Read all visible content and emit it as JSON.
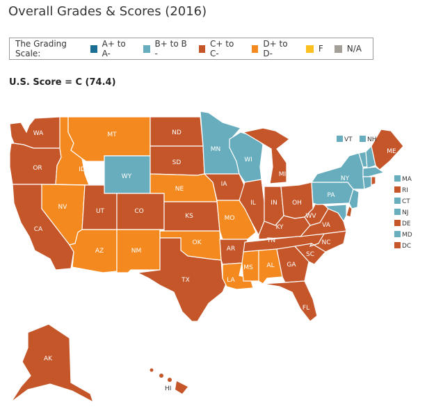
{
  "title": "Overall Grades & Scores (2016)",
  "legend": {
    "label": "The Grading Scale:",
    "items": [
      {
        "label": "A+ to A-",
        "color": "#1a6e94"
      },
      {
        "label": "B+ to B -",
        "color": "#68adbd"
      },
      {
        "label": "C+ to C-",
        "color": "#c4562a"
      },
      {
        "label": "D+ to D-",
        "color": "#f4891f"
      },
      {
        "label": "F",
        "color": "#fcc020"
      },
      {
        "label": "N/A",
        "color": "#a59f99"
      }
    ]
  },
  "us_score": "U.S. Score = C (74.4)",
  "states": {
    "WA": "WA",
    "OR": "OR",
    "CA": "CA",
    "ID": "ID",
    "NV": "NV",
    "MT": "MT",
    "WY": "WY",
    "UT": "UT",
    "CO": "CO",
    "AZ": "AZ",
    "NM": "NM",
    "ND": "ND",
    "SD": "SD",
    "NE": "NE",
    "KS": "KS",
    "OK": "OK",
    "TX": "TX",
    "MN": "MN",
    "IA": "IA",
    "MO": "MO",
    "AR": "AR",
    "LA": "LA",
    "WI": "WI",
    "IL": "IL",
    "MI": "MI",
    "IN": "IN",
    "OH": "OH",
    "KY": "KY",
    "TN": "TN",
    "MS": "MS",
    "AL": "AL",
    "GA": "GA",
    "FL": "FL",
    "SC": "SC",
    "NC": "NC",
    "VA": "VA",
    "WV": "WV",
    "PA": "PA",
    "NY": "NY",
    "ME": "ME",
    "AK": "AK",
    "HI": "HI"
  },
  "small_states": [
    {
      "abbr": "VT",
      "grade": "B"
    },
    {
      "abbr": "NH",
      "grade": "B"
    },
    {
      "abbr": "MA",
      "grade": "B"
    },
    {
      "abbr": "RI",
      "grade": "C"
    },
    {
      "abbr": "CT",
      "grade": "B"
    },
    {
      "abbr": "NJ",
      "grade": "B"
    },
    {
      "abbr": "DE",
      "grade": "C"
    },
    {
      "abbr": "MD",
      "grade": "B"
    },
    {
      "abbr": "DC",
      "grade": "C"
    }
  ]
}
